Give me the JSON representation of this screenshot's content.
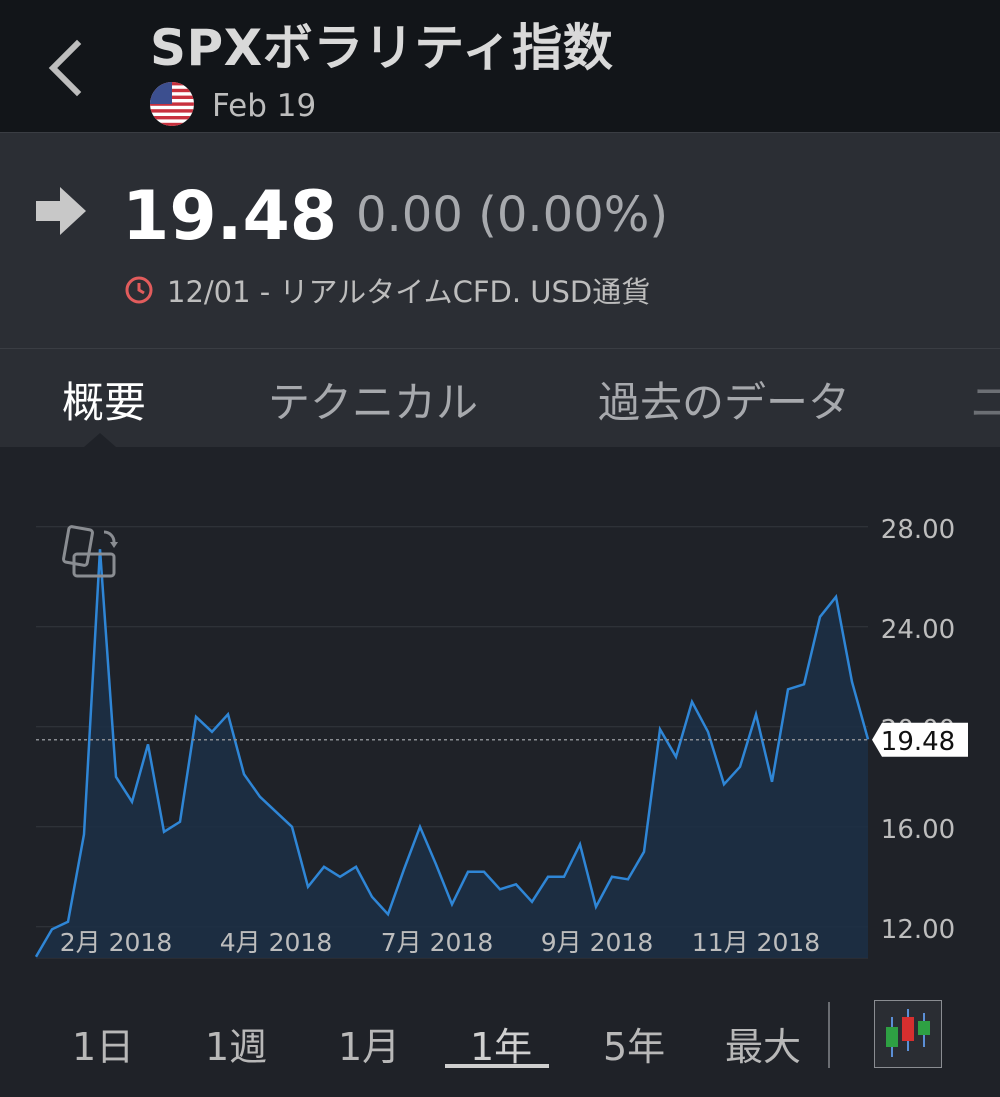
{
  "header": {
    "title": "SPXボラリティ指数",
    "flag_icon": "us-flag-icon",
    "date": "Feb 19"
  },
  "quote": {
    "price": "19.48",
    "change": "0.00 (0.00%)",
    "meta": "12/01 - リアルタイムCFD. USD通貨",
    "direction_icon": "arrow-right-icon",
    "clock_color": "#e25c5c"
  },
  "tabs": [
    {
      "label": "概要",
      "active": true
    },
    {
      "label": "テクニカル",
      "active": false
    },
    {
      "label": "過去のデータ",
      "active": false
    },
    {
      "label": "ニ",
      "active": false
    }
  ],
  "chart_data": {
    "type": "area",
    "x_tick_labels": [
      "2月 2018",
      "4月 2018",
      "7月 2018",
      "9月 2018",
      "11月 2018"
    ],
    "y_tick_labels": [
      "28.00",
      "24.00",
      "20.00",
      "16.00",
      "12.00"
    ],
    "y_ticks": [
      28,
      24,
      20,
      16,
      12
    ],
    "ylim": [
      10.75,
      28.75
    ],
    "current_value": 19.48,
    "current_label": "19.48",
    "line_color": "#2f86d6",
    "values": [
      10.8,
      11.9,
      12.2,
      15.7,
      27.1,
      18.0,
      17.0,
      19.3,
      15.8,
      16.2,
      20.4,
      19.8,
      20.5,
      18.1,
      17.2,
      16.6,
      16.0,
      13.6,
      14.4,
      14.0,
      14.4,
      13.2,
      12.5,
      14.3,
      16.0,
      14.5,
      12.9,
      14.2,
      14.2,
      13.5,
      13.7,
      13.0,
      14.0,
      14.0,
      15.3,
      12.8,
      14.0,
      13.9,
      15.0,
      19.9,
      18.8,
      21.0,
      19.8,
      17.7,
      18.4,
      20.5,
      17.8,
      21.5,
      21.7,
      24.4,
      25.2,
      21.8,
      19.5
    ]
  },
  "ranges": [
    {
      "label": "1日",
      "active": false
    },
    {
      "label": "1週",
      "active": false
    },
    {
      "label": "1月",
      "active": false
    },
    {
      "label": "1年",
      "active": true
    },
    {
      "label": "5年",
      "active": false
    },
    {
      "label": "最大",
      "active": false
    }
  ],
  "chart_type_icon": "candlestick-icon"
}
